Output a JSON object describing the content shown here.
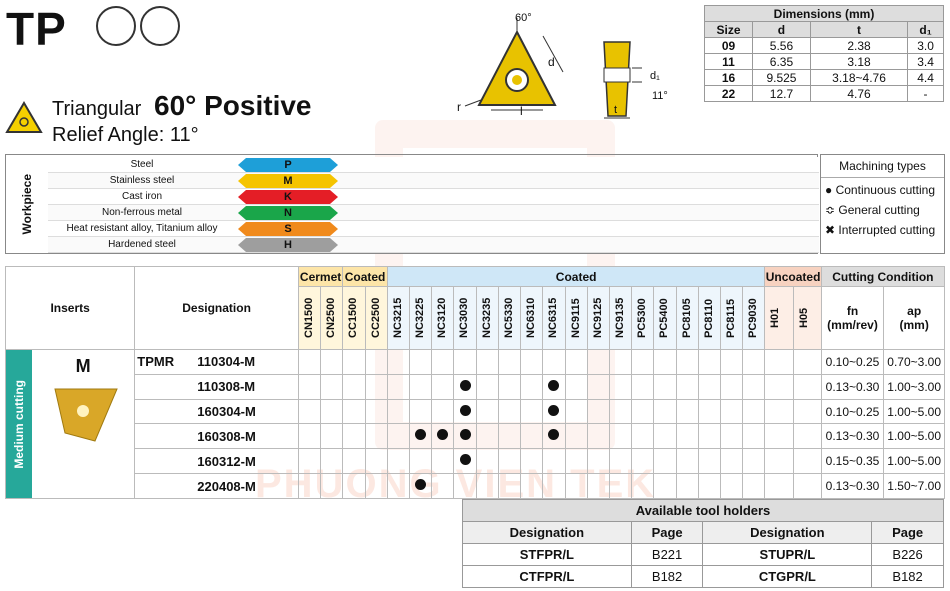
{
  "header": {
    "code": "TP",
    "shape_name": "Triangular",
    "angle_title": "60° Positive",
    "relief_angle": "Relief Angle: 11°"
  },
  "diagram": {
    "angle_label": "60°",
    "d_label": "d",
    "r_label": "r",
    "l_label": "l",
    "d1_label": "d₁",
    "t_label": "t",
    "relief_label": "11°"
  },
  "dimensions": {
    "title": "Dimensions (mm)",
    "headers": [
      "Size",
      "d",
      "t",
      "d₁"
    ],
    "rows": [
      [
        "09",
        "5.56",
        "2.38",
        "3.0"
      ],
      [
        "11",
        "6.35",
        "3.18",
        "3.4"
      ],
      [
        "16",
        "9.525",
        "3.18~4.76",
        "4.4"
      ],
      [
        "22",
        "12.7",
        "4.76",
        "-"
      ]
    ]
  },
  "workpiece": {
    "side_label": "Workpiece",
    "rows": [
      {
        "name": "Steel",
        "code": "P",
        "color": "#1e9fd8"
      },
      {
        "name": "Stainless steel",
        "code": "M",
        "color": "#f5c400"
      },
      {
        "name": "Cast iron",
        "code": "K",
        "color": "#e41e26"
      },
      {
        "name": "Non-ferrous metal",
        "code": "N",
        "color": "#1aa64a"
      },
      {
        "name": "Heat resistant alloy, Titanium alloy",
        "code": "S",
        "color": "#f08a1c"
      },
      {
        "name": "Hardened steel",
        "code": "H",
        "color": "#9e9e9e"
      }
    ]
  },
  "machining_types": {
    "title": "Machining types",
    "items": [
      "Continuous cutting",
      "General cutting",
      "Interrupted cutting"
    ]
  },
  "grade_groups": {
    "cermet": "Cermet",
    "coated_a": "Coated",
    "coated_b": "Coated",
    "uncoated": "Uncoated",
    "cutting_condition": "Cutting Condition"
  },
  "grades": [
    "CN1500",
    "CN2500",
    "CC1500",
    "CC2500",
    "NC3215",
    "NC3225",
    "NC3120",
    "NC3030",
    "NC3235",
    "NC5330",
    "NC6310",
    "NC6315",
    "NC9115",
    "NC9125",
    "NC9135",
    "PC5300",
    "PC5400",
    "PC8105",
    "PC8110",
    "PC8115",
    "PC9030",
    "H01",
    "H05"
  ],
  "main_table": {
    "inserts_header": "Inserts",
    "designation_header": "Designation",
    "fn_header": "fn",
    "fn_unit": "(mm/rev)",
    "ap_header": "ap",
    "ap_unit": "(mm)",
    "side_label": "Medium cutting",
    "chipbreaker": "M",
    "series": "TPMR",
    "rows": [
      {
        "designation": "110304-M",
        "fn": "0.10~0.25",
        "ap": "0.70~3.00",
        "dots": []
      },
      {
        "designation": "110308-M",
        "fn": "0.13~0.30",
        "ap": "1.00~3.00",
        "dots": [
          7,
          11
        ]
      },
      {
        "designation": "160304-M",
        "fn": "0.10~0.25",
        "ap": "1.00~5.00",
        "dots": [
          7,
          11
        ]
      },
      {
        "designation": "160308-M",
        "fn": "0.13~0.30",
        "ap": "1.00~5.00",
        "dots": [
          5,
          6,
          7,
          11
        ]
      },
      {
        "designation": "160312-M",
        "fn": "0.15~0.35",
        "ap": "1.00~5.00",
        "dots": [
          7
        ]
      },
      {
        "designation": "220408-M",
        "fn": "0.13~0.30",
        "ap": "1.50~7.00",
        "dots": [
          5
        ]
      }
    ]
  },
  "watermark": "PHUONG VIEN TEK",
  "holders": {
    "title": "Available tool holders",
    "headers": [
      "Designation",
      "Page",
      "Designation",
      "Page"
    ],
    "rows": [
      [
        "STFPR/L",
        "B221",
        "STUPR/L",
        "B226"
      ],
      [
        "CTFPR/L",
        "B182",
        "CTGPR/L",
        "B182"
      ]
    ]
  }
}
